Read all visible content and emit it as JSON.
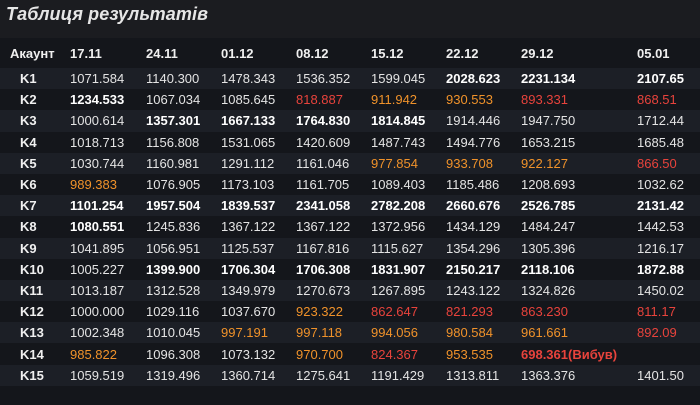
{
  "title": "Таблиця результатів",
  "header": {
    "account": "Акаунт",
    "dates": [
      "17.11",
      "24.11",
      "01.12",
      "08.12",
      "15.12",
      "22.12",
      "29.12",
      "05.01"
    ]
  },
  "colors": {
    "white": "#e4e4e4",
    "orange": "#f0922a",
    "red": "#e8433c"
  },
  "rows": [
    {
      "acc": "K1",
      "cells": [
        {
          "v": "1071.584",
          "s": "w"
        },
        {
          "v": "1140.300",
          "s": "w"
        },
        {
          "v": "1478.343",
          "s": "w"
        },
        {
          "v": "1536.352",
          "s": "w"
        },
        {
          "v": "1599.045",
          "s": "w"
        },
        {
          "v": "2028.623",
          "s": "b"
        },
        {
          "v": "2231.134",
          "s": "b"
        },
        {
          "v": "2107.65",
          "s": "b"
        }
      ]
    },
    {
      "acc": "K2",
      "cells": [
        {
          "v": "1234.533",
          "s": "b"
        },
        {
          "v": "1067.034",
          "s": "w"
        },
        {
          "v": "1085.645",
          "s": "w"
        },
        {
          "v": "818.887",
          "s": "r"
        },
        {
          "v": "911.942",
          "s": "o"
        },
        {
          "v": "930.553",
          "s": "o"
        },
        {
          "v": "893.331",
          "s": "r"
        },
        {
          "v": "868.51",
          "s": "r"
        }
      ]
    },
    {
      "acc": "K3",
      "cells": [
        {
          "v": "1000.614",
          "s": "w"
        },
        {
          "v": "1357.301",
          "s": "b"
        },
        {
          "v": "1667.133",
          "s": "b"
        },
        {
          "v": "1764.830",
          "s": "b"
        },
        {
          "v": "1814.845",
          "s": "b"
        },
        {
          "v": "1914.446",
          "s": "w"
        },
        {
          "v": "1947.750",
          "s": "w"
        },
        {
          "v": "1712.44",
          "s": "w"
        }
      ]
    },
    {
      "acc": "K4",
      "cells": [
        {
          "v": "1018.713",
          "s": "w"
        },
        {
          "v": "1156.808",
          "s": "w"
        },
        {
          "v": "1531.065",
          "s": "w"
        },
        {
          "v": "1420.609",
          "s": "w"
        },
        {
          "v": "1487.743",
          "s": "w"
        },
        {
          "v": "1494.776",
          "s": "w"
        },
        {
          "v": "1653.215",
          "s": "w"
        },
        {
          "v": "1685.48",
          "s": "w"
        }
      ]
    },
    {
      "acc": "K5",
      "cells": [
        {
          "v": "1030.744",
          "s": "w"
        },
        {
          "v": "1160.981",
          "s": "w"
        },
        {
          "v": "1291.112",
          "s": "w"
        },
        {
          "v": "1161.046",
          "s": "w"
        },
        {
          "v": "977.854",
          "s": "o"
        },
        {
          "v": "933.708",
          "s": "o"
        },
        {
          "v": "922.127",
          "s": "o"
        },
        {
          "v": "866.50",
          "s": "r"
        }
      ]
    },
    {
      "acc": "K6",
      "cells": [
        {
          "v": "989.383",
          "s": "o"
        },
        {
          "v": "1076.905",
          "s": "w"
        },
        {
          "v": "1173.103",
          "s": "w"
        },
        {
          "v": "1161.705",
          "s": "w"
        },
        {
          "v": "1089.403",
          "s": "w"
        },
        {
          "v": "1185.486",
          "s": "w"
        },
        {
          "v": "1208.693",
          "s": "w"
        },
        {
          "v": "1032.62",
          "s": "w"
        }
      ]
    },
    {
      "acc": "K7",
      "cells": [
        {
          "v": "1101.254",
          "s": "b"
        },
        {
          "v": "1957.504",
          "s": "b"
        },
        {
          "v": "1839.537",
          "s": "b"
        },
        {
          "v": "2341.058",
          "s": "b"
        },
        {
          "v": "2782.208",
          "s": "b"
        },
        {
          "v": "2660.676",
          "s": "b"
        },
        {
          "v": "2526.785",
          "s": "b"
        },
        {
          "v": "2131.42",
          "s": "b"
        }
      ]
    },
    {
      "acc": "K8",
      "cells": [
        {
          "v": "1080.551",
          "s": "b"
        },
        {
          "v": "1245.836",
          "s": "w"
        },
        {
          "v": "1367.122",
          "s": "w"
        },
        {
          "v": "1367.122",
          "s": "w"
        },
        {
          "v": "1372.956",
          "s": "w"
        },
        {
          "v": "1434.129",
          "s": "w"
        },
        {
          "v": "1484.247",
          "s": "w"
        },
        {
          "v": "1442.53",
          "s": "w"
        }
      ]
    },
    {
      "acc": "K9",
      "cells": [
        {
          "v": "1041.895",
          "s": "w"
        },
        {
          "v": "1056.951",
          "s": "w"
        },
        {
          "v": "1125.537",
          "s": "w"
        },
        {
          "v": "1167.816",
          "s": "w"
        },
        {
          "v": "1115.627",
          "s": "w"
        },
        {
          "v": "1354.296",
          "s": "w"
        },
        {
          "v": "1305.396",
          "s": "w"
        },
        {
          "v": "1216.17",
          "s": "w"
        }
      ]
    },
    {
      "acc": "K10",
      "cells": [
        {
          "v": "1005.227",
          "s": "w"
        },
        {
          "v": "1399.900",
          "s": "b"
        },
        {
          "v": "1706.304",
          "s": "b"
        },
        {
          "v": "1706.308",
          "s": "b"
        },
        {
          "v": "1831.907",
          "s": "b"
        },
        {
          "v": "2150.217",
          "s": "b"
        },
        {
          "v": "2118.106",
          "s": "b"
        },
        {
          "v": "1872.88",
          "s": "b"
        }
      ]
    },
    {
      "acc": "K11",
      "cells": [
        {
          "v": "1013.187",
          "s": "w"
        },
        {
          "v": "1312.528",
          "s": "w"
        },
        {
          "v": "1349.979",
          "s": "w"
        },
        {
          "v": "1270.673",
          "s": "w"
        },
        {
          "v": "1267.895",
          "s": "w"
        },
        {
          "v": "1243.122",
          "s": "w"
        },
        {
          "v": "1324.826",
          "s": "w"
        },
        {
          "v": "1450.02",
          "s": "w"
        }
      ]
    },
    {
      "acc": "K12",
      "cells": [
        {
          "v": "1000.000",
          "s": "w"
        },
        {
          "v": "1029.116",
          "s": "w"
        },
        {
          "v": "1037.670",
          "s": "w"
        },
        {
          "v": "923.322",
          "s": "o"
        },
        {
          "v": "862.647",
          "s": "r"
        },
        {
          "v": "821.293",
          "s": "r"
        },
        {
          "v": "863.230",
          "s": "r"
        },
        {
          "v": "811.17",
          "s": "r"
        }
      ]
    },
    {
      "acc": "K13",
      "cells": [
        {
          "v": "1002.348",
          "s": "w"
        },
        {
          "v": "1010.045",
          "s": "w"
        },
        {
          "v": "997.191",
          "s": "o"
        },
        {
          "v": "997.118",
          "s": "o"
        },
        {
          "v": "994.056",
          "s": "o"
        },
        {
          "v": "980.584",
          "s": "o"
        },
        {
          "v": "961.661",
          "s": "o"
        },
        {
          "v": "892.09",
          "s": "r"
        }
      ]
    },
    {
      "acc": "K14",
      "cells": [
        {
          "v": "985.822",
          "s": "o"
        },
        {
          "v": "1096.308",
          "s": "w"
        },
        {
          "v": "1073.132",
          "s": "w"
        },
        {
          "v": "970.700",
          "s": "o"
        },
        {
          "v": "824.367",
          "s": "r"
        },
        {
          "v": "953.535",
          "s": "o"
        },
        {
          "v": "698.361(Вибув)",
          "s": "rb"
        },
        {
          "v": "",
          "s": "w"
        }
      ]
    },
    {
      "acc": "K15",
      "cells": [
        {
          "v": "1059.519",
          "s": "w"
        },
        {
          "v": "1319.496",
          "s": "w"
        },
        {
          "v": "1360.714",
          "s": "w"
        },
        {
          "v": "1275.641",
          "s": "w"
        },
        {
          "v": "1191.429",
          "s": "w"
        },
        {
          "v": "1313.811",
          "s": "w"
        },
        {
          "v": "1363.376",
          "s": "w"
        },
        {
          "v": "1401.50",
          "s": "w"
        }
      ]
    }
  ]
}
